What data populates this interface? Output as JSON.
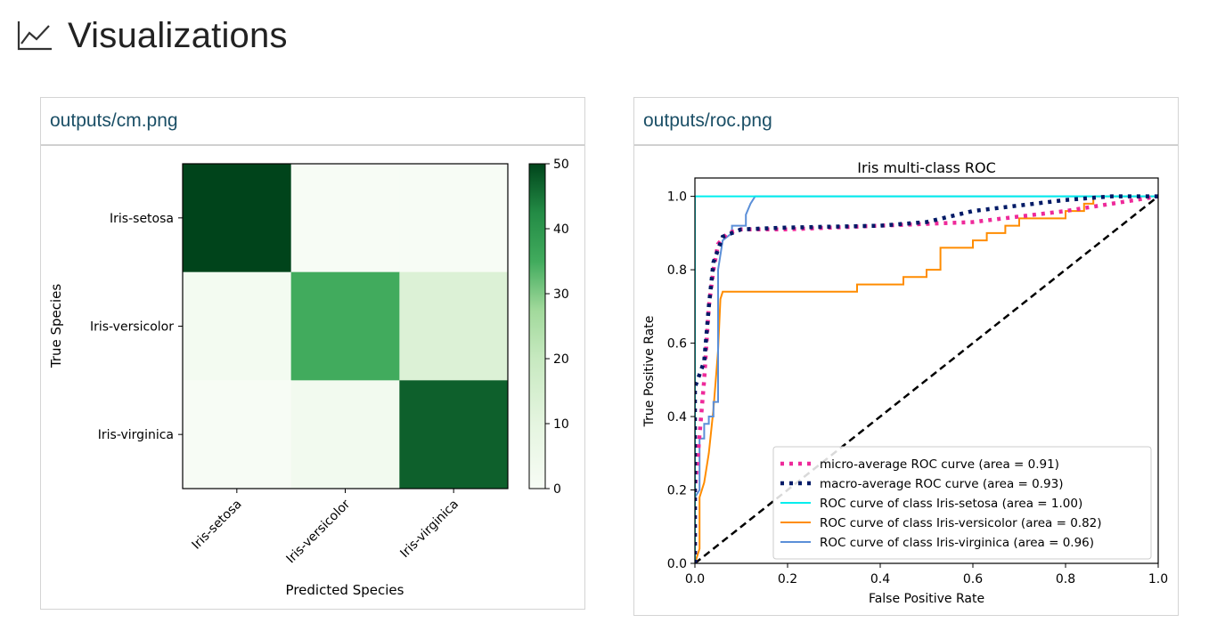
{
  "page": {
    "title": "Visualizations",
    "icon": "line-chart-icon"
  },
  "cards": [
    {
      "path": "outputs/cm.png",
      "chart_data": {
        "type": "heatmap",
        "title": "",
        "xlabel": "Predicted Species",
        "ylabel": "True Species",
        "x_categories": [
          "Iris-setosa",
          "Iris-versicolor",
          "Iris-virginica"
        ],
        "y_categories": [
          "Iris-setosa",
          "Iris-versicolor",
          "Iris-virginica"
        ],
        "values": [
          [
            50,
            0,
            0
          ],
          [
            2,
            35,
            13
          ],
          [
            0,
            3,
            47
          ]
        ],
        "colorbar": {
          "min": 0,
          "max": 50,
          "ticks": [
            0,
            10,
            20,
            30,
            40,
            50
          ],
          "colormap": "Greens"
        }
      }
    },
    {
      "path": "outputs/roc.png",
      "chart_data": {
        "type": "line",
        "title": "Iris multi-class ROC",
        "xlabel": "False Positive Rate",
        "ylabel": "True Positive Rate",
        "xlim": [
          0.0,
          1.0
        ],
        "ylim": [
          0.0,
          1.05
        ],
        "xticks": [
          "0.0",
          "0.2",
          "0.4",
          "0.6",
          "0.8",
          "1.0"
        ],
        "yticks": [
          "0.0",
          "0.2",
          "0.4",
          "0.6",
          "0.8",
          "1.0"
        ],
        "legend_position": "lower-right",
        "series": [
          {
            "name": "micro-average ROC curve (area = 0.91)",
            "color": "#ee2a9a",
            "style": "dotted",
            "points": [
              [
                0,
                0
              ],
              [
                0,
                0.2
              ],
              [
                0.01,
                0.35
              ],
              [
                0.02,
                0.5
              ],
              [
                0.03,
                0.7
              ],
              [
                0.04,
                0.8
              ],
              [
                0.05,
                0.87
              ],
              [
                0.07,
                0.9
              ],
              [
                0.1,
                0.91
              ],
              [
                0.2,
                0.91
              ],
              [
                0.4,
                0.92
              ],
              [
                0.6,
                0.93
              ],
              [
                0.8,
                0.96
              ],
              [
                0.9,
                0.98
              ],
              [
                1.0,
                1.0
              ]
            ]
          },
          {
            "name": "macro-average ROC curve (area = 0.93)",
            "color": "#001a66",
            "style": "dotted",
            "points": [
              [
                0,
                0
              ],
              [
                0,
                0.48
              ],
              [
                0.02,
                0.55
              ],
              [
                0.03,
                0.7
              ],
              [
                0.04,
                0.82
              ],
              [
                0.06,
                0.89
              ],
              [
                0.1,
                0.91
              ],
              [
                0.2,
                0.915
              ],
              [
                0.4,
                0.92
              ],
              [
                0.5,
                0.93
              ],
              [
                0.6,
                0.96
              ],
              [
                0.8,
                0.99
              ],
              [
                0.9,
                1.0
              ],
              [
                1.0,
                1.0
              ]
            ]
          },
          {
            "name": "ROC curve of class Iris-setosa (area = 1.00)",
            "color": "#00eeee",
            "style": "solid",
            "points": [
              [
                0,
                0
              ],
              [
                0,
                1.0
              ],
              [
                1.0,
                1.0
              ]
            ]
          },
          {
            "name": "ROC curve of class Iris-versicolor (area = 0.82)",
            "color": "#ff8c00",
            "style": "solid",
            "points": [
              [
                0,
                0
              ],
              [
                0.01,
                0.04
              ],
              [
                0.01,
                0.18
              ],
              [
                0.02,
                0.22
              ],
              [
                0.03,
                0.3
              ],
              [
                0.04,
                0.42
              ],
              [
                0.05,
                0.58
              ],
              [
                0.055,
                0.72
              ],
              [
                0.06,
                0.74
              ],
              [
                0.35,
                0.74
              ],
              [
                0.35,
                0.76
              ],
              [
                0.45,
                0.76
              ],
              [
                0.45,
                0.78
              ],
              [
                0.5,
                0.78
              ],
              [
                0.5,
                0.8
              ],
              [
                0.53,
                0.8
              ],
              [
                0.53,
                0.86
              ],
              [
                0.6,
                0.86
              ],
              [
                0.6,
                0.88
              ],
              [
                0.63,
                0.88
              ],
              [
                0.63,
                0.9
              ],
              [
                0.67,
                0.9
              ],
              [
                0.67,
                0.92
              ],
              [
                0.7,
                0.92
              ],
              [
                0.7,
                0.94
              ],
              [
                0.8,
                0.94
              ],
              [
                0.8,
                0.96
              ],
              [
                0.84,
                0.96
              ],
              [
                0.84,
                0.98
              ],
              [
                0.86,
                0.98
              ],
              [
                0.86,
                1.0
              ],
              [
                1.0,
                1.0
              ]
            ]
          },
          {
            "name": "ROC curve of class Iris-virginica (area = 0.96)",
            "color": "#5b8fd8",
            "style": "solid",
            "points": [
              [
                0,
                0
              ],
              [
                0,
                0.18
              ],
              [
                0.01,
                0.2
              ],
              [
                0.01,
                0.34
              ],
              [
                0.02,
                0.34
              ],
              [
                0.02,
                0.38
              ],
              [
                0.03,
                0.38
              ],
              [
                0.03,
                0.4
              ],
              [
                0.04,
                0.4
              ],
              [
                0.04,
                0.44
              ],
              [
                0.05,
                0.44
              ],
              [
                0.05,
                0.8
              ],
              [
                0.06,
                0.88
              ],
              [
                0.08,
                0.9
              ],
              [
                0.08,
                0.92
              ],
              [
                0.11,
                0.92
              ],
              [
                0.11,
                0.95
              ],
              [
                0.12,
                0.98
              ],
              [
                0.13,
                1.0
              ],
              [
                1.0,
                1.0
              ]
            ]
          },
          {
            "name": "",
            "color": "#000000",
            "style": "dashed",
            "points": [
              [
                0,
                0
              ],
              [
                1,
                1
              ]
            ]
          }
        ]
      }
    }
  ]
}
